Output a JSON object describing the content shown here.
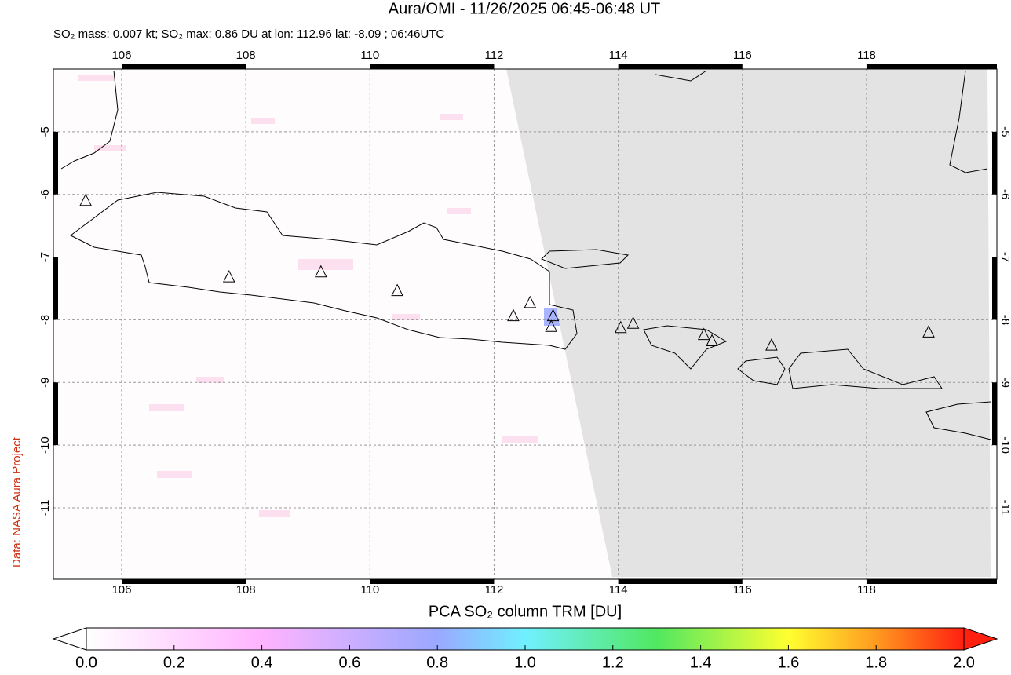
{
  "chart_data": {
    "type": "map",
    "title": "Aura/OMI - 11/26/2025 06:45-06:48 UT",
    "subtitle": "SO₂ mass: 0.007 kt; SO₂ max: 0.86 DU at lon: 112.96 lat: -8.09 ; 06:46UTC",
    "credit": "Data: NASA Aura Project",
    "xlim": [
      104.9,
      120.1
    ],
    "ylim": [
      -12.14,
      -4.0
    ],
    "xticks": [
      106,
      108,
      110,
      112,
      114,
      116,
      118
    ],
    "yticks": [
      -5,
      -6,
      -7,
      -8,
      -9,
      -10,
      -11
    ],
    "grid": true,
    "volcanoes": {
      "x": [
        105.42,
        107.73,
        109.21,
        110.44,
        112.31,
        112.58,
        112.95,
        112.92,
        114.04,
        114.24,
        115.38,
        115.51,
        116.47,
        119.0
      ],
      "y": [
        -6.1,
        -7.32,
        -7.24,
        -7.54,
        -7.94,
        -7.73,
        -7.94,
        -8.11,
        -8.13,
        -8.06,
        -8.24,
        -8.34,
        -8.41,
        -8.2
      ]
    },
    "colorbar": {
      "label": "PCA SO₂ column TRM [DU]",
      "lim": [
        0,
        2
      ],
      "ticks": [
        {
          "value": 0,
          "label": "0.0"
        },
        {
          "value": 0.2,
          "label": "0.2"
        },
        {
          "value": 0.4,
          "label": "0.4"
        },
        {
          "value": 0.6,
          "label": "0.6"
        },
        {
          "value": 0.8,
          "label": "0.8"
        },
        {
          "value": 1,
          "label": "1.0"
        },
        {
          "value": 1.2,
          "label": "1.2"
        },
        {
          "value": 1.4,
          "label": "1.4"
        },
        {
          "value": 1.6,
          "label": "1.6"
        },
        {
          "value": 1.8,
          "label": "1.8"
        },
        {
          "value": 2,
          "label": "2.0"
        }
      ]
    }
  }
}
